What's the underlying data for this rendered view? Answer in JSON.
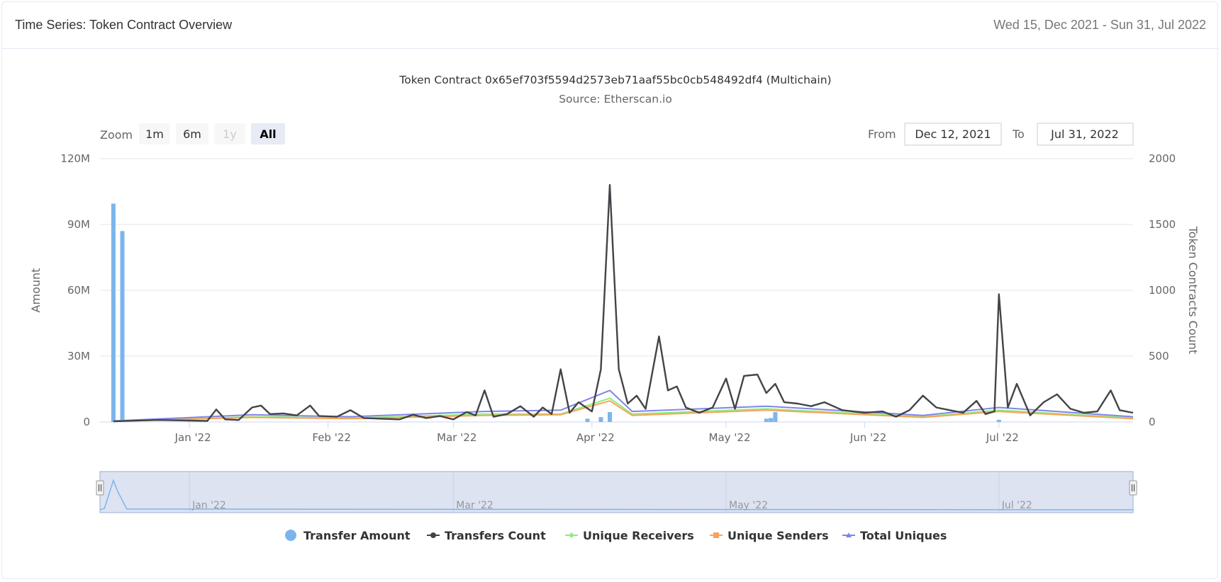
{
  "header": {
    "title": "Time Series: Token Contract Overview",
    "date_range": "Wed 15, Dec 2021 - Sun 31, Jul 2022"
  },
  "range_selector": {
    "zoom_label": "Zoom",
    "buttons": [
      {
        "label": "1m",
        "state": "normal"
      },
      {
        "label": "6m",
        "state": "normal"
      },
      {
        "label": "1y",
        "state": "disabled"
      },
      {
        "label": "All",
        "state": "selected"
      }
    ],
    "from_label": "From",
    "from_value": "Dec 12, 2021",
    "to_label": "To",
    "to_value": "Jul 31, 2022"
  },
  "colors": {
    "transfer_amount": "#7cb5ec",
    "transfers_count": "#434348",
    "unique_receivers": "#90ed7d",
    "unique_senders": "#f7a35c",
    "total_uniques": "#8085e9",
    "navigator_fill": "#dde3f1"
  },
  "chart_data": {
    "type": "line",
    "title": "Token Contract 0x65ef703f5594d2573eb71aaf55bc0cb548492df4 (Multichain)",
    "subtitle": "Source: Etherscan.io",
    "x_range": [
      "2021-12-12",
      "2022-07-31"
    ],
    "x_ticks": [
      {
        "date": "2022-01-01",
        "label": "Jan '22"
      },
      {
        "date": "2022-02-01",
        "label": "Feb '22"
      },
      {
        "date": "2022-03-01",
        "label": "Mar '22"
      },
      {
        "date": "2022-04-01",
        "label": "Apr '22"
      },
      {
        "date": "2022-05-01",
        "label": "May '22"
      },
      {
        "date": "2022-06-01",
        "label": "Jun '22"
      },
      {
        "date": "2022-07-01",
        "label": "Jul '22"
      }
    ],
    "navigator_ticks": [
      {
        "date": "2022-01-01",
        "label": "Jan '22"
      },
      {
        "date": "2022-03-01",
        "label": "Mar '22"
      },
      {
        "date": "2022-05-01",
        "label": "May '22"
      },
      {
        "date": "2022-07-01",
        "label": "Jul '22"
      }
    ],
    "y_left": {
      "label": "Amount",
      "range": [
        0,
        120000000
      ],
      "ticks": [
        0,
        30000000,
        60000000,
        90000000,
        120000000
      ],
      "tick_labels": [
        "0",
        "30M",
        "60M",
        "90M",
        "120M"
      ]
    },
    "y_right": {
      "label": "Token Contracts Count",
      "range": [
        0,
        2000
      ],
      "ticks": [
        0,
        500,
        1000,
        1500,
        2000
      ],
      "tick_labels": [
        "0",
        "500",
        "1000",
        "1500",
        "2000"
      ]
    },
    "grid": true,
    "legend_position": "bottom-center",
    "series": [
      {
        "name": "Transfer Amount",
        "type": "column",
        "axis": "left",
        "points": [
          [
            "2021-12-15",
            99500000
          ],
          [
            "2021-12-17",
            87000000
          ],
          [
            "2022-03-31",
            1500000
          ],
          [
            "2022-04-03",
            2200000
          ],
          [
            "2022-04-05",
            4500000
          ],
          [
            "2022-05-10",
            1500000
          ],
          [
            "2022-05-11",
            1800000
          ],
          [
            "2022-05-12",
            4500000
          ],
          [
            "2022-07-01",
            1000000
          ]
        ]
      },
      {
        "name": "Transfers Count",
        "type": "line",
        "axis": "right",
        "points": [
          [
            "2021-12-15",
            5
          ],
          [
            "2021-12-20",
            10
          ],
          [
            "2021-12-25",
            15
          ],
          [
            "2022-01-01",
            10
          ],
          [
            "2022-01-05",
            8
          ],
          [
            "2022-01-07",
            95
          ],
          [
            "2022-01-09",
            20
          ],
          [
            "2022-01-12",
            15
          ],
          [
            "2022-01-15",
            110
          ],
          [
            "2022-01-17",
            125
          ],
          [
            "2022-01-19",
            60
          ],
          [
            "2022-01-22",
            65
          ],
          [
            "2022-01-25",
            50
          ],
          [
            "2022-01-28",
            125
          ],
          [
            "2022-01-30",
            45
          ],
          [
            "2022-02-03",
            40
          ],
          [
            "2022-02-06",
            90
          ],
          [
            "2022-02-09",
            30
          ],
          [
            "2022-02-13",
            25
          ],
          [
            "2022-02-17",
            20
          ],
          [
            "2022-02-20",
            55
          ],
          [
            "2022-02-23",
            30
          ],
          [
            "2022-02-26",
            45
          ],
          [
            "2022-03-01",
            20
          ],
          [
            "2022-03-04",
            75
          ],
          [
            "2022-03-06",
            50
          ],
          [
            "2022-03-08",
            240
          ],
          [
            "2022-03-10",
            40
          ],
          [
            "2022-03-13",
            60
          ],
          [
            "2022-03-16",
            120
          ],
          [
            "2022-03-19",
            40
          ],
          [
            "2022-03-21",
            110
          ],
          [
            "2022-03-23",
            60
          ],
          [
            "2022-03-25",
            400
          ],
          [
            "2022-03-27",
            70
          ],
          [
            "2022-03-29",
            150
          ],
          [
            "2022-04-01",
            80
          ],
          [
            "2022-04-03",
            400
          ],
          [
            "2022-04-05",
            1800
          ],
          [
            "2022-04-07",
            400
          ],
          [
            "2022-04-09",
            140
          ],
          [
            "2022-04-11",
            200
          ],
          [
            "2022-04-13",
            100
          ],
          [
            "2022-04-16",
            650
          ],
          [
            "2022-04-18",
            240
          ],
          [
            "2022-04-20",
            270
          ],
          [
            "2022-04-22",
            110
          ],
          [
            "2022-04-25",
            70
          ],
          [
            "2022-04-28",
            110
          ],
          [
            "2022-05-01",
            330
          ],
          [
            "2022-05-03",
            100
          ],
          [
            "2022-05-05",
            350
          ],
          [
            "2022-05-08",
            360
          ],
          [
            "2022-05-10",
            220
          ],
          [
            "2022-05-12",
            290
          ],
          [
            "2022-05-14",
            150
          ],
          [
            "2022-05-17",
            140
          ],
          [
            "2022-05-20",
            120
          ],
          [
            "2022-05-23",
            150
          ],
          [
            "2022-05-27",
            90
          ],
          [
            "2022-06-01",
            70
          ],
          [
            "2022-06-05",
            80
          ],
          [
            "2022-06-08",
            40
          ],
          [
            "2022-06-11",
            90
          ],
          [
            "2022-06-14",
            200
          ],
          [
            "2022-06-17",
            110
          ],
          [
            "2022-06-20",
            90
          ],
          [
            "2022-06-23",
            70
          ],
          [
            "2022-06-26",
            160
          ],
          [
            "2022-06-28",
            60
          ],
          [
            "2022-06-30",
            80
          ],
          [
            "2022-07-01",
            970
          ],
          [
            "2022-07-03",
            110
          ],
          [
            "2022-07-05",
            290
          ],
          [
            "2022-07-08",
            50
          ],
          [
            "2022-07-11",
            150
          ],
          [
            "2022-07-14",
            210
          ],
          [
            "2022-07-17",
            100
          ],
          [
            "2022-07-20",
            70
          ],
          [
            "2022-07-23",
            80
          ],
          [
            "2022-07-26",
            240
          ],
          [
            "2022-07-28",
            90
          ],
          [
            "2022-07-31",
            70
          ]
        ]
      },
      {
        "name": "Unique Receivers",
        "type": "line",
        "axis": "right",
        "points": [
          [
            "2021-12-15",
            5
          ],
          [
            "2022-01-15",
            40
          ],
          [
            "2022-02-06",
            30
          ],
          [
            "2022-03-08",
            60
          ],
          [
            "2022-03-25",
            60
          ],
          [
            "2022-04-05",
            180
          ],
          [
            "2022-04-10",
            60
          ],
          [
            "2022-05-10",
            100
          ],
          [
            "2022-06-14",
            40
          ],
          [
            "2022-07-01",
            90
          ],
          [
            "2022-07-31",
            30
          ]
        ]
      },
      {
        "name": "Unique Senders",
        "type": "line",
        "axis": "right",
        "points": [
          [
            "2021-12-15",
            5
          ],
          [
            "2022-01-15",
            35
          ],
          [
            "2022-02-06",
            25
          ],
          [
            "2022-03-08",
            50
          ],
          [
            "2022-03-25",
            55
          ],
          [
            "2022-04-05",
            160
          ],
          [
            "2022-04-10",
            50
          ],
          [
            "2022-05-10",
            90
          ],
          [
            "2022-06-14",
            35
          ],
          [
            "2022-07-01",
            80
          ],
          [
            "2022-07-31",
            25
          ]
        ]
      },
      {
        "name": "Total Uniques",
        "type": "line",
        "axis": "right",
        "points": [
          [
            "2021-12-15",
            8
          ],
          [
            "2022-01-15",
            55
          ],
          [
            "2022-02-06",
            40
          ],
          [
            "2022-03-08",
            80
          ],
          [
            "2022-03-25",
            90
          ],
          [
            "2022-04-05",
            240
          ],
          [
            "2022-04-10",
            80
          ],
          [
            "2022-05-10",
            120
          ],
          [
            "2022-06-14",
            50
          ],
          [
            "2022-07-01",
            110
          ],
          [
            "2022-07-31",
            40
          ]
        ]
      }
    ]
  }
}
